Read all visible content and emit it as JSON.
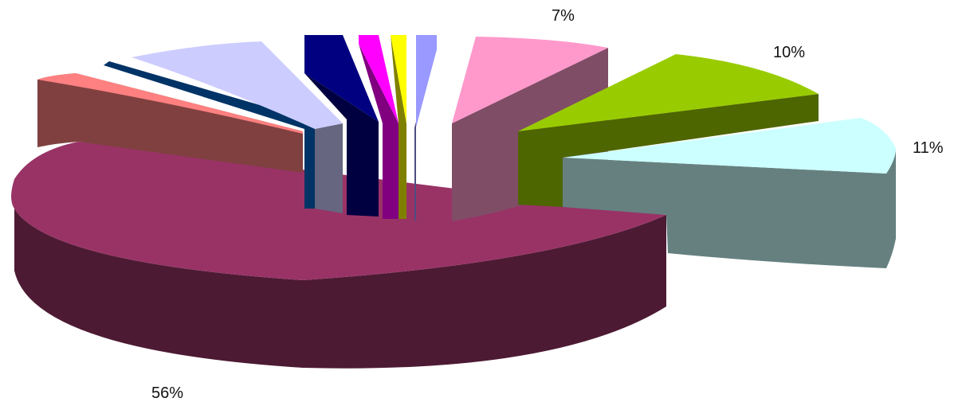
{
  "chart_data": {
    "type": "pie",
    "style": "3d-exploded",
    "slices": [
      {
        "value": 56,
        "label": "56%",
        "top_color": "#993366",
        "side_color": "#4d1a33"
      },
      {
        "value": 5,
        "label": "",
        "top_color": "#ff8080",
        "side_color": "#804040"
      },
      {
        "value": 0.5,
        "label": "",
        "top_color": "#003366",
        "side_color": "#003366"
      },
      {
        "value": 6,
        "label": "",
        "top_color": "#ccccff",
        "side_color": "#666680"
      },
      {
        "value": 2,
        "label": "",
        "top_color": "#000080",
        "side_color": "#000040"
      },
      {
        "value": 1.5,
        "label": "",
        "top_color": "#ff00ff",
        "side_color": "#800080"
      },
      {
        "value": 1,
        "label": "",
        "top_color": "#ffff00",
        "side_color": "#808000"
      },
      {
        "value": 1,
        "label": "",
        "top_color": "#9999ff",
        "side_color": "#4d4d80"
      },
      {
        "value": 7,
        "label": "7%",
        "top_color": "#ff99cc",
        "side_color": "#804d66"
      },
      {
        "value": 10,
        "label": "10%",
        "top_color": "#99cc00",
        "side_color": "#4d6600"
      },
      {
        "value": 11,
        "label": "11%",
        "top_color": "#ccffff",
        "side_color": "#668080"
      }
    ]
  }
}
